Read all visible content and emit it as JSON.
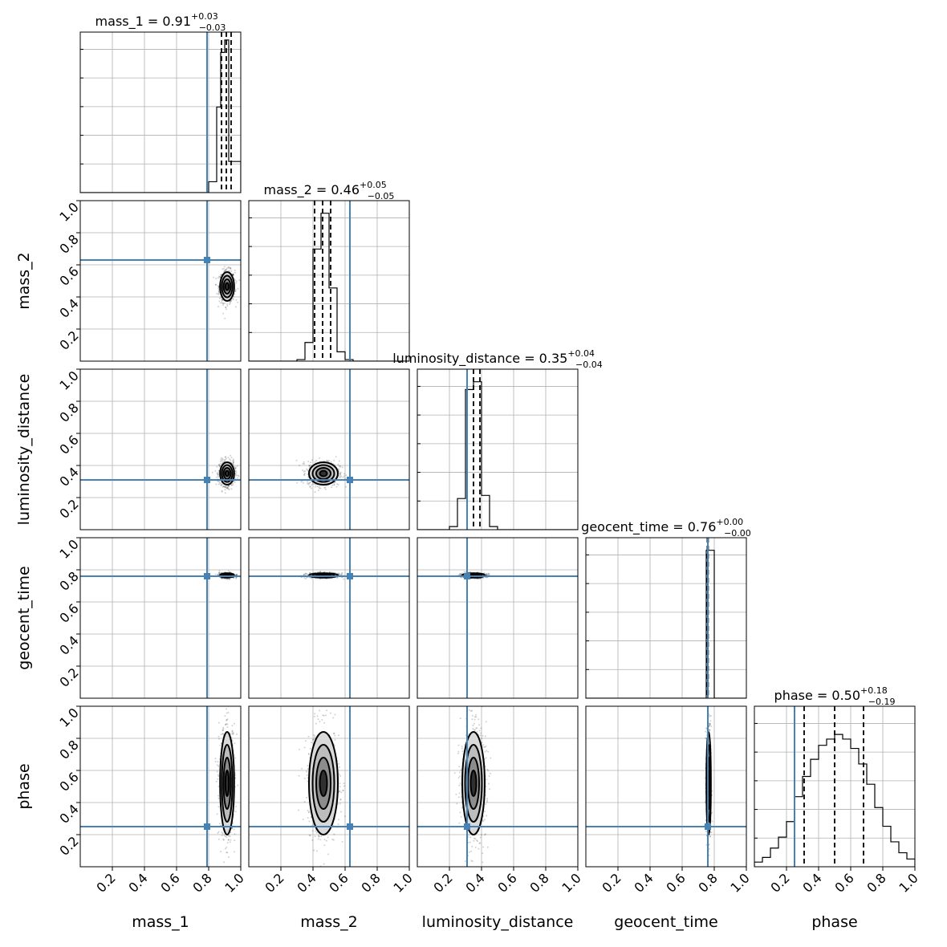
{
  "chart_data": {
    "type": "corner",
    "parameters": [
      "mass_1",
      "mass_2",
      "luminosity_distance",
      "geocent_time",
      "phase"
    ],
    "axis_range": [
      0,
      1
    ],
    "tick_values": [
      0.2,
      0.4,
      0.6,
      0.8,
      1.0
    ],
    "tick_labels": [
      "0.2",
      "0.4",
      "0.6",
      "0.8",
      "1.0"
    ],
    "grid": true,
    "truth_color": "#4682b4",
    "truths": [
      0.79,
      0.63,
      0.31,
      0.76,
      0.25
    ],
    "titles": [
      {
        "param": "mass_1",
        "median": "0.91",
        "plus": "+0.03",
        "minus": "−0.03"
      },
      {
        "param": "mass_2",
        "median": "0.46",
        "plus": "+0.05",
        "minus": "−0.05"
      },
      {
        "param": "luminosity_distance",
        "median": "0.35",
        "plus": "+0.04",
        "minus": "−0.04"
      },
      {
        "param": "geocent_time",
        "median": "0.76",
        "plus": "+0.00",
        "minus": "−0.00"
      },
      {
        "param": "phase",
        "median": "0.50",
        "plus": "+0.18",
        "minus": "−0.19"
      }
    ],
    "quantiles": [
      [
        0.88,
        0.91,
        0.94
      ],
      [
        0.41,
        0.46,
        0.51
      ],
      [
        0.31,
        0.35,
        0.39
      ],
      [
        0.757,
        0.76,
        0.762
      ],
      [
        0.31,
        0.5,
        0.68
      ]
    ],
    "histograms": [
      {
        "edges": [
          0.8,
          0.85,
          0.875,
          0.9,
          0.925,
          0.95,
          1.0
        ],
        "heights": [
          0.07,
          0.55,
          0.9,
          0.98,
          0.2,
          0.2
        ]
      },
      {
        "edges": [
          0.3,
          0.35,
          0.4,
          0.45,
          0.5,
          0.55,
          0.6,
          0.65
        ],
        "heights": [
          0.01,
          0.12,
          0.72,
          0.95,
          0.47,
          0.06,
          0.01
        ]
      },
      {
        "edges": [
          0.2,
          0.25,
          0.3,
          0.35,
          0.4,
          0.45,
          0.5
        ],
        "heights": [
          0.02,
          0.2,
          0.9,
          0.95,
          0.22,
          0.02
        ]
      },
      {
        "edges": [
          0.75,
          0.755,
          0.77,
          0.8
        ],
        "heights": [
          0.95,
          0.95,
          0.95
        ]
      },
      {
        "edges": [
          0.0,
          0.05,
          0.1,
          0.15,
          0.2,
          0.25,
          0.3,
          0.35,
          0.4,
          0.45,
          0.5,
          0.55,
          0.6,
          0.65,
          0.7,
          0.75,
          0.8,
          0.85,
          0.9,
          0.95,
          1.0
        ],
        "heights": [
          0.03,
          0.06,
          0.12,
          0.19,
          0.29,
          0.45,
          0.58,
          0.69,
          0.78,
          0.82,
          0.85,
          0.82,
          0.76,
          0.66,
          0.53,
          0.38,
          0.26,
          0.16,
          0.09,
          0.05
        ]
      }
    ],
    "posterior": {
      "mean": [
        0.915,
        0.465,
        0.35,
        0.765,
        0.52
      ],
      "sd": [
        0.022,
        0.045,
        0.035,
        0.007,
        0.16
      ]
    }
  }
}
